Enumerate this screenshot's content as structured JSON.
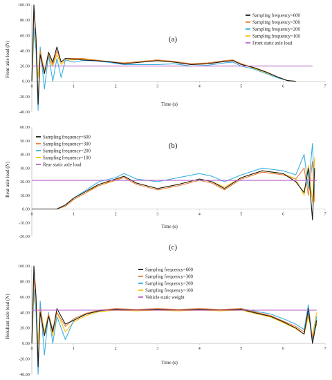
{
  "colors": {
    "f600": "#1a1a1a",
    "f300": "#ed7d31",
    "f200": "#3ab0e2",
    "f100": "#ffc000",
    "static": "#b660c8",
    "axis": "#bfbfbf"
  },
  "chart_data": [
    {
      "type": "line",
      "panel_label": "(a)",
      "xlabel": "Time (s)",
      "ylabel": "Front axle load (N)",
      "xlim": [
        0,
        7
      ],
      "ylim": [
        -40,
        100
      ],
      "xticks": [
        "0",
        "1",
        "2",
        "3",
        "4",
        "5",
        "6",
        "7"
      ],
      "yticks": [
        "-40.00",
        "-20.00",
        "0.00",
        "20.00",
        "40.00",
        "60.00",
        "80.00",
        "100.00"
      ],
      "legend_position": "top-right",
      "static_line": {
        "name": "Front static axle load",
        "y": 20,
        "x_start": 0,
        "x_end": 6.7
      },
      "series": [
        {
          "name": "Sampling frequency=600",
          "color_key": "f600",
          "x": [
            0,
            0.05,
            0.1,
            0.15,
            0.2,
            0.3,
            0.4,
            0.5,
            0.6,
            0.7,
            0.8,
            1.0,
            1.2,
            1.5,
            1.8,
            2.2,
            2.6,
            3.0,
            3.4,
            3.8,
            4.2,
            4.6,
            4.8,
            5.0,
            5.3,
            5.6,
            5.9,
            6.1,
            6.3
          ],
          "y": [
            0,
            100,
            55,
            -30,
            35,
            10,
            38,
            25,
            45,
            25,
            30,
            29,
            28,
            27,
            26,
            23,
            25,
            27,
            25,
            22,
            23,
            26,
            27,
            22,
            18,
            12,
            5,
            1,
            0
          ]
        },
        {
          "name": "Sampling frequency=300",
          "color_key": "f300",
          "x": [
            0,
            0.05,
            0.1,
            0.15,
            0.2,
            0.3,
            0.4,
            0.5,
            0.6,
            0.7,
            0.8,
            1.0,
            1.2,
            1.5,
            1.8,
            2.2,
            2.6,
            3.0,
            3.4,
            3.8,
            4.2,
            4.6,
            4.8,
            5.0,
            5.3,
            5.6,
            5.9,
            6.1,
            6.3
          ],
          "y": [
            0,
            90,
            60,
            -25,
            40,
            12,
            35,
            22,
            40,
            25,
            30,
            30,
            30,
            28,
            26,
            24,
            26,
            28,
            26,
            23,
            24,
            27,
            28,
            23,
            18,
            12,
            5,
            1,
            0
          ]
        },
        {
          "name": "Sampling frequency=200",
          "color_key": "f200",
          "x": [
            0,
            0.05,
            0.1,
            0.15,
            0.2,
            0.3,
            0.4,
            0.5,
            0.6,
            0.7,
            0.8,
            1.0,
            1.2,
            1.5,
            1.8,
            2.2,
            2.6,
            3.0,
            3.4,
            3.8,
            4.2,
            4.6,
            4.8,
            5.0,
            5.3,
            5.6,
            5.9,
            6.1,
            6.3
          ],
          "y": [
            0,
            70,
            40,
            -38,
            45,
            -10,
            35,
            0,
            30,
            5,
            28,
            25,
            27,
            27,
            25,
            22,
            22,
            22,
            23,
            20,
            21,
            24,
            25,
            20,
            16,
            10,
            4,
            1,
            0
          ]
        },
        {
          "name": "Sampling frequency=100",
          "color_key": "f100",
          "x": [
            0,
            0.05,
            0.1,
            0.15,
            0.2,
            0.3,
            0.4,
            0.5,
            0.6,
            0.7,
            0.8,
            1.0,
            1.2,
            1.5,
            1.8,
            2.2,
            2.6,
            3.0,
            3.4,
            3.8,
            4.2,
            4.6,
            4.8,
            5.0,
            5.3,
            5.6,
            5.9,
            6.1,
            6.3
          ],
          "y": [
            0,
            60,
            45,
            5,
            40,
            15,
            30,
            20,
            35,
            22,
            28,
            28,
            29,
            28,
            26,
            23,
            25,
            27,
            25,
            22,
            23,
            26,
            27,
            22,
            17,
            11,
            5,
            1,
            0
          ]
        }
      ]
    },
    {
      "type": "line",
      "panel_label": "(b)",
      "xlabel": "Time (s)",
      "ylabel": "Rear axle load (N)",
      "xlim": [
        0,
        7
      ],
      "ylim": [
        -20,
        60
      ],
      "xticks": [
        "0",
        "1",
        "2",
        "3",
        "4",
        "5",
        "6",
        "7"
      ],
      "yticks": [
        "-20.00",
        "-10.00",
        "0.00",
        "10.00",
        "20.00",
        "30.00",
        "40.00",
        "50.00",
        "60.00"
      ],
      "legend_position": "top-left",
      "static_line": {
        "name": "Rear static axle load",
        "y": 21,
        "x_start": 0,
        "x_end": 6.8
      },
      "series": [
        {
          "name": "Sampling frequency=600",
          "color_key": "f600",
          "x": [
            0,
            0.6,
            0.8,
            1.0,
            1.3,
            1.6,
            2.0,
            2.2,
            2.5,
            3.0,
            3.5,
            4.0,
            4.3,
            4.6,
            5.0,
            5.5,
            6.0,
            6.3,
            6.5,
            6.6,
            6.7,
            6.75
          ],
          "y": [
            0,
            0,
            3,
            8,
            13,
            18,
            22,
            24,
            19,
            15,
            18,
            22,
            20,
            15,
            23,
            28,
            26,
            20,
            12,
            30,
            -8,
            30
          ]
        },
        {
          "name": "Sampling frequency=300",
          "color_key": "f300",
          "x": [
            0,
            0.6,
            0.8,
            1.0,
            1.3,
            1.6,
            2.0,
            2.2,
            2.5,
            3.0,
            3.5,
            4.0,
            4.3,
            4.6,
            5.0,
            5.5,
            6.0,
            6.3,
            6.5,
            6.6,
            6.7,
            6.75
          ],
          "y": [
            0,
            0,
            2,
            7,
            12,
            17,
            21,
            23,
            18,
            14,
            17,
            21,
            19,
            14,
            22,
            27,
            25,
            22,
            30,
            10,
            35,
            5
          ]
        },
        {
          "name": "Sampling frequency=200",
          "color_key": "f200",
          "x": [
            0,
            0.6,
            0.8,
            1.0,
            1.3,
            1.6,
            2.0,
            2.2,
            2.5,
            3.0,
            3.5,
            4.0,
            4.3,
            4.6,
            5.0,
            5.5,
            6.0,
            6.3,
            6.5,
            6.6,
            6.7,
            6.75
          ],
          "y": [
            0,
            0,
            3,
            8,
            14,
            20,
            23,
            26,
            22,
            20,
            23,
            26,
            24,
            20,
            25,
            30,
            28,
            25,
            40,
            15,
            48,
            10
          ]
        },
        {
          "name": "Sampling frequency=100",
          "color_key": "f100",
          "x": [
            0,
            0.6,
            0.8,
            1.0,
            1.3,
            1.6,
            2.0,
            2.2,
            2.5,
            3.0,
            3.5,
            4.0,
            4.3,
            4.6,
            5.0,
            5.5,
            6.0,
            6.3,
            6.5,
            6.6,
            6.7,
            6.75
          ],
          "y": [
            0,
            0,
            2,
            7,
            12,
            18,
            21,
            24,
            19,
            15,
            18,
            22,
            20,
            16,
            23,
            28,
            26,
            22,
            10,
            32,
            5,
            38
          ]
        }
      ]
    },
    {
      "type": "line",
      "panel_label": "(c)",
      "xlabel": "Time (s)",
      "ylabel": "Resultant axle load (N)",
      "xlim": [
        0,
        7
      ],
      "ylim": [
        -40,
        100
      ],
      "xticks": [
        "0",
        "1",
        "2",
        "3",
        "4",
        "5",
        "6",
        "7"
      ],
      "yticks": [
        "-40.00",
        "-20.00",
        "0.00",
        "20.00",
        "40.00",
        "60.00",
        "80.00",
        "100.00"
      ],
      "legend_position": "top-center",
      "static_line": {
        "name": "Vehicle static weight",
        "y": 43,
        "x_start": 0,
        "x_end": 6.8
      },
      "series": [
        {
          "name": "Sampling frequency=600",
          "color_key": "f600",
          "x": [
            0,
            0.05,
            0.1,
            0.15,
            0.2,
            0.3,
            0.4,
            0.5,
            0.6,
            0.8,
            1.0,
            1.3,
            1.6,
            2.0,
            2.5,
            3.0,
            3.5,
            4.0,
            4.5,
            5.0,
            5.3,
            5.7,
            6.0,
            6.3,
            6.5,
            6.6,
            6.7,
            6.8
          ],
          "y": [
            0,
            100,
            60,
            -30,
            40,
            10,
            35,
            15,
            45,
            25,
            30,
            38,
            42,
            44,
            43,
            44,
            43,
            44,
            43,
            44,
            40,
            35,
            28,
            20,
            12,
            45,
            0,
            30
          ]
        },
        {
          "name": "Sampling frequency=300",
          "color_key": "f300",
          "x": [
            0,
            0.05,
            0.1,
            0.15,
            0.2,
            0.3,
            0.4,
            0.5,
            0.6,
            0.8,
            1.0,
            1.3,
            1.6,
            2.0,
            2.5,
            3.0,
            3.5,
            4.0,
            4.5,
            5.0,
            5.3,
            5.7,
            6.0,
            6.3,
            6.5,
            6.6,
            6.7,
            6.8
          ],
          "y": [
            0,
            85,
            55,
            -25,
            45,
            12,
            38,
            18,
            40,
            22,
            32,
            39,
            43,
            45,
            44,
            45,
            44,
            45,
            44,
            45,
            41,
            36,
            29,
            22,
            15,
            38,
            8,
            25
          ]
        },
        {
          "name": "Sampling frequency=200",
          "color_key": "f200",
          "x": [
            0,
            0.05,
            0.1,
            0.15,
            0.2,
            0.3,
            0.4,
            0.5,
            0.6,
            0.8,
            1.0,
            1.3,
            1.6,
            2.0,
            2.5,
            3.0,
            3.5,
            4.0,
            4.5,
            5.0,
            5.3,
            5.7,
            6.0,
            6.3,
            6.5,
            6.6,
            6.7,
            6.8
          ],
          "y": [
            0,
            70,
            40,
            -40,
            55,
            -15,
            40,
            0,
            35,
            5,
            30,
            38,
            42,
            44,
            43,
            44,
            43,
            44,
            43,
            45,
            42,
            38,
            32,
            25,
            18,
            50,
            5,
            35
          ]
        },
        {
          "name": "Sampling frequency=100",
          "color_key": "f100",
          "x": [
            0,
            0.05,
            0.1,
            0.15,
            0.2,
            0.3,
            0.4,
            0.5,
            0.6,
            0.8,
            1.0,
            1.3,
            1.6,
            2.0,
            2.5,
            3.0,
            3.5,
            4.0,
            4.5,
            5.0,
            5.3,
            5.7,
            6.0,
            6.3,
            6.5,
            6.6,
            6.7,
            6.8
          ],
          "y": [
            0,
            60,
            45,
            0,
            48,
            15,
            38,
            10,
            40,
            15,
            28,
            36,
            41,
            43,
            42,
            43,
            42,
            43,
            42,
            43,
            39,
            34,
            27,
            19,
            12,
            35,
            10,
            40
          ]
        }
      ]
    }
  ]
}
